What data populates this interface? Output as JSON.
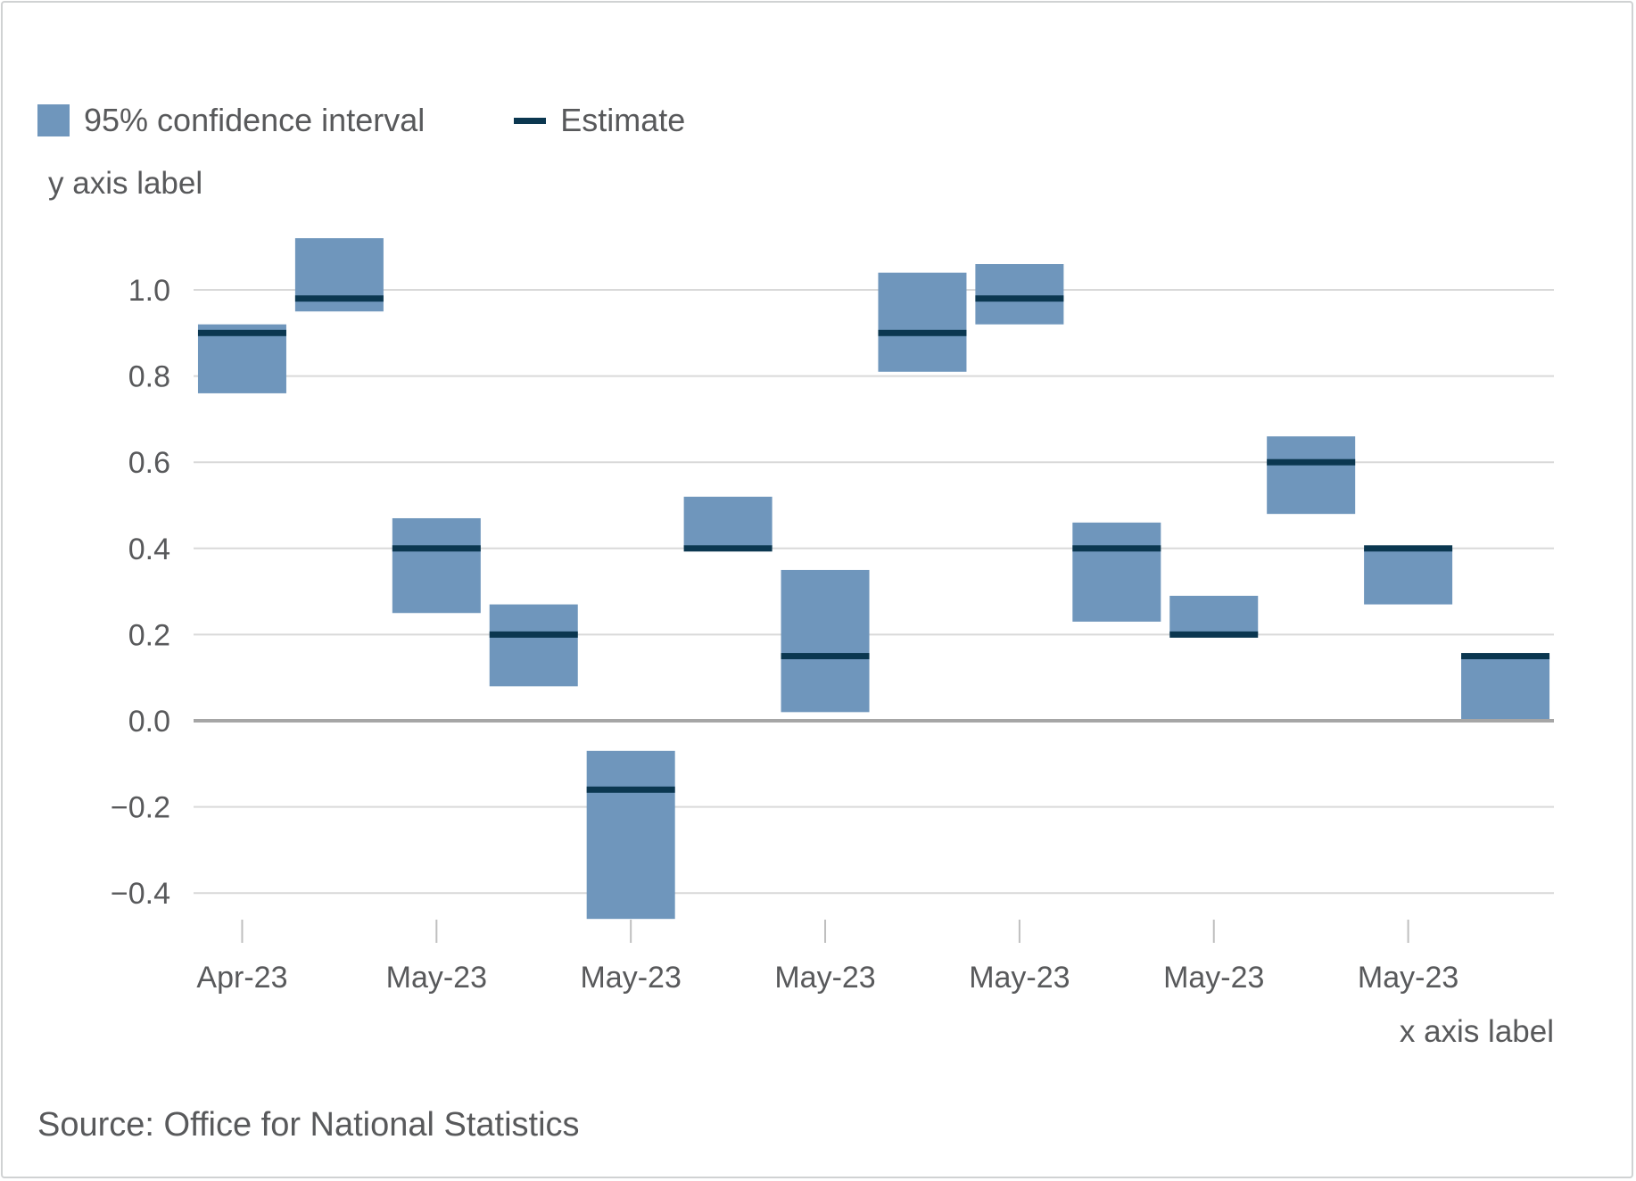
{
  "chart_data": {
    "type": "bar",
    "legend": {
      "interval_label": "95% confidence interval",
      "estimate_label": "Estimate",
      "position": "top-left"
    },
    "ylabel": "y axis label",
    "xlabel": "x axis label",
    "ylim": [
      -0.45,
      1.15
    ],
    "yticks": [
      {
        "value": 1.0,
        "label": "1.0"
      },
      {
        "value": 0.8,
        "label": "0.8"
      },
      {
        "value": 0.6,
        "label": "0.6"
      },
      {
        "value": 0.4,
        "label": "0.4"
      },
      {
        "value": 0.2,
        "label": "0.2"
      },
      {
        "value": 0.0,
        "label": "0.0"
      },
      {
        "value": -0.2,
        "label": "−0.2"
      },
      {
        "value": -0.4,
        "label": "−0.4"
      }
    ],
    "x_tick_labels": [
      "Apr-23",
      "May-23",
      "May-23",
      "May-23",
      "May-23",
      "May-23",
      "May-23"
    ],
    "x_tick_every": 2,
    "grid": true,
    "colors": {
      "interval": "#6f96bc",
      "estimate": "#0b3750",
      "grid": "#d9d9d9",
      "zero_line": "#a6a6a6"
    },
    "points": [
      {
        "estimate": 0.9,
        "lower": 0.76,
        "upper": 0.92
      },
      {
        "estimate": 0.98,
        "lower": 0.95,
        "upper": 1.12
      },
      {
        "estimate": 0.4,
        "lower": 0.25,
        "upper": 0.47
      },
      {
        "estimate": 0.2,
        "lower": 0.08,
        "upper": 0.27
      },
      {
        "estimate": -0.16,
        "lower": -0.46,
        "upper": -0.07
      },
      {
        "estimate": 0.4,
        "lower": 0.4,
        "upper": 0.52
      },
      {
        "estimate": 0.15,
        "lower": 0.02,
        "upper": 0.35
      },
      {
        "estimate": 0.9,
        "lower": 0.81,
        "upper": 1.04
      },
      {
        "estimate": 0.98,
        "lower": 0.92,
        "upper": 1.06
      },
      {
        "estimate": 0.4,
        "lower": 0.23,
        "upper": 0.46
      },
      {
        "estimate": 0.2,
        "lower": 0.2,
        "upper": 0.29
      },
      {
        "estimate": 0.6,
        "lower": 0.48,
        "upper": 0.66
      },
      {
        "estimate": 0.4,
        "lower": 0.27,
        "upper": 0.4
      },
      {
        "estimate": 0.15,
        "lower": 0.0,
        "upper": 0.15
      }
    ]
  },
  "source": "Source: Office for National Statistics"
}
